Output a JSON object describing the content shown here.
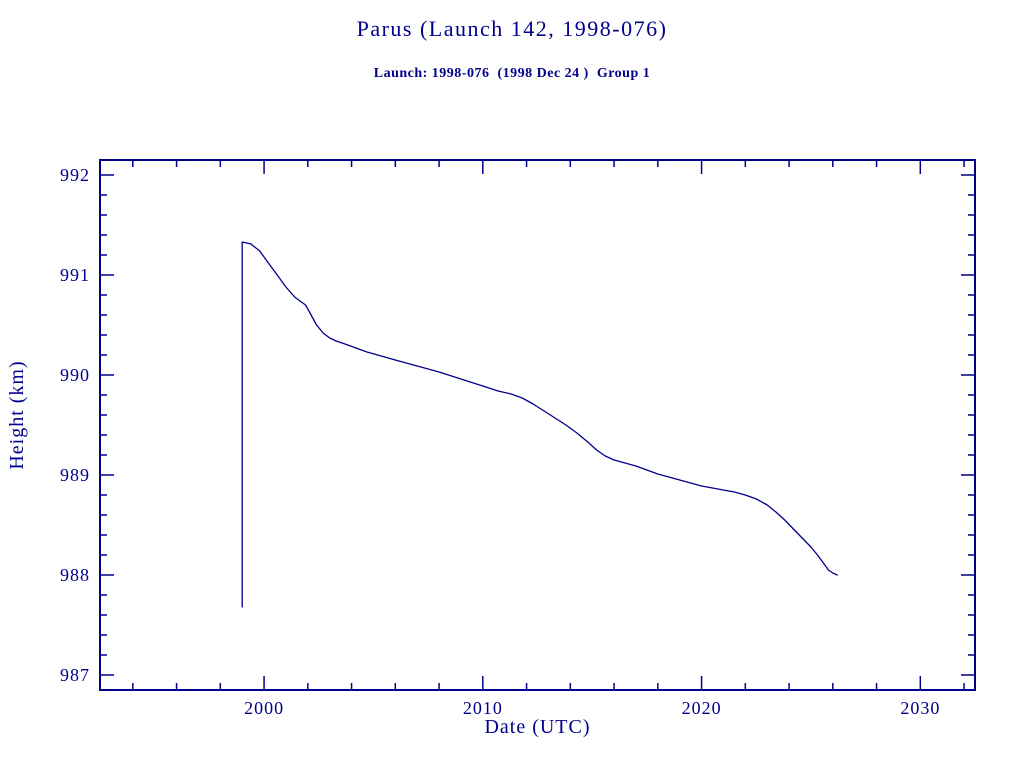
{
  "page": {
    "background": "#ffffff",
    "accent": "#00008b"
  },
  "chart_data": {
    "type": "line",
    "title": "Parus (Launch 142, 1998-076)",
    "subtitle": "Launch: 1998-076  (1998 Dec 24 )  Group 1",
    "xlabel": "Date (UTC)",
    "ylabel": "Height (km)",
    "xlim": [
      1992.5,
      2032.5
    ],
    "ylim": [
      986.85,
      992.15
    ],
    "x_major_ticks": [
      2000,
      2010,
      2020,
      2030
    ],
    "x_minor_step": 2,
    "y_major_ticks": [
      987,
      988,
      989,
      990,
      991,
      992
    ],
    "y_minor_step": 0.2,
    "grid": false,
    "legend": null,
    "line_color": "#00008b",
    "frame_color": "#00008b",
    "series": [
      {
        "name": "orbital-height",
        "points": [
          [
            1999.0,
            987.68
          ],
          [
            1999.0,
            991.33
          ],
          [
            1999.4,
            991.31
          ],
          [
            1999.8,
            991.24
          ],
          [
            2000.2,
            991.12
          ],
          [
            2000.6,
            991.0
          ],
          [
            2001.0,
            990.88
          ],
          [
            2001.4,
            990.78
          ],
          [
            2001.7,
            990.73
          ],
          [
            2001.9,
            990.7
          ],
          [
            2002.1,
            990.62
          ],
          [
            2002.4,
            990.5
          ],
          [
            2002.7,
            990.42
          ],
          [
            2003.0,
            990.37
          ],
          [
            2003.3,
            990.34
          ],
          [
            2003.7,
            990.31
          ],
          [
            2004.2,
            990.27
          ],
          [
            2004.7,
            990.23
          ],
          [
            2005.2,
            990.2
          ],
          [
            2006.0,
            990.15
          ],
          [
            2007.0,
            990.09
          ],
          [
            2008.0,
            990.03
          ],
          [
            2009.0,
            989.96
          ],
          [
            2010.0,
            989.89
          ],
          [
            2010.7,
            989.84
          ],
          [
            2011.3,
            989.81
          ],
          [
            2011.8,
            989.77
          ],
          [
            2012.3,
            989.71
          ],
          [
            2012.8,
            989.64
          ],
          [
            2013.3,
            989.57
          ],
          [
            2013.8,
            989.5
          ],
          [
            2014.3,
            989.42
          ],
          [
            2014.8,
            989.33
          ],
          [
            2015.2,
            989.25
          ],
          [
            2015.6,
            989.19
          ],
          [
            2016.0,
            989.15
          ],
          [
            2016.5,
            989.12
          ],
          [
            2017.0,
            989.09
          ],
          [
            2017.5,
            989.05
          ],
          [
            2018.0,
            989.01
          ],
          [
            2018.5,
            988.98
          ],
          [
            2019.0,
            988.95
          ],
          [
            2019.5,
            988.92
          ],
          [
            2020.0,
            988.89
          ],
          [
            2020.5,
            988.87
          ],
          [
            2021.0,
            988.85
          ],
          [
            2021.5,
            988.83
          ],
          [
            2022.0,
            988.8
          ],
          [
            2022.5,
            988.76
          ],
          [
            2023.0,
            988.7
          ],
          [
            2023.4,
            988.63
          ],
          [
            2023.8,
            988.55
          ],
          [
            2024.2,
            988.46
          ],
          [
            2024.6,
            988.37
          ],
          [
            2025.0,
            988.28
          ],
          [
            2025.3,
            988.2
          ],
          [
            2025.6,
            988.11
          ],
          [
            2025.8,
            988.05
          ],
          [
            2026.0,
            988.02
          ],
          [
            2026.2,
            988.0
          ]
        ]
      }
    ]
  }
}
